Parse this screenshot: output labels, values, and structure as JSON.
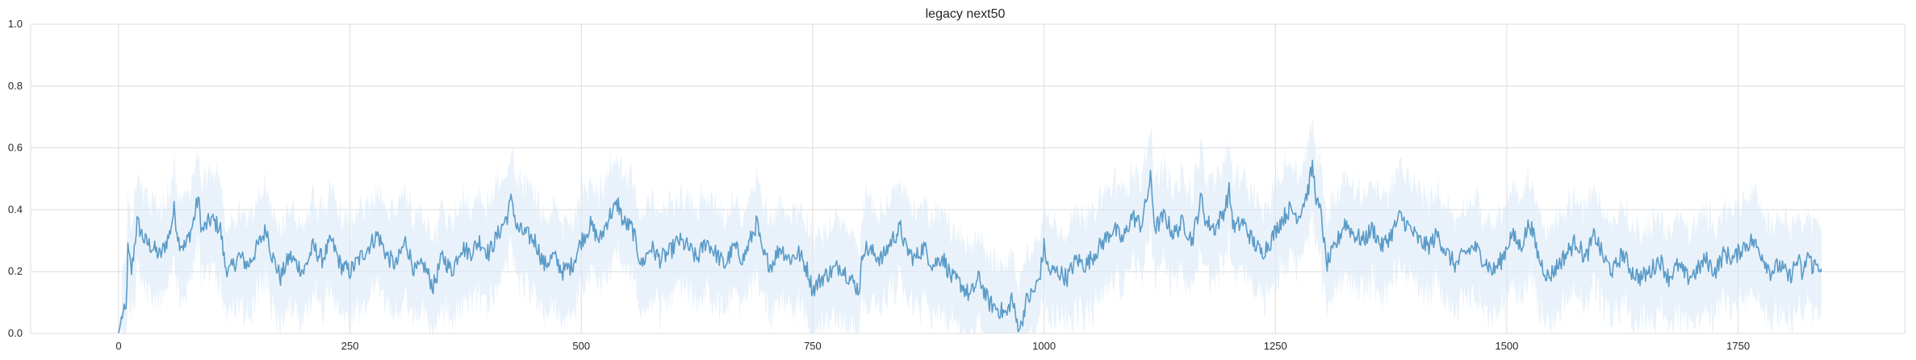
{
  "chart_data": {
    "type": "line",
    "title": "legacy next50",
    "xlabel": "",
    "ylabel": "",
    "xlim": [
      -95,
      1930
    ],
    "ylim": [
      0,
      1
    ],
    "x_ticks": [
      0,
      250,
      500,
      750,
      1000,
      1250,
      1500,
      1750
    ],
    "y_ticks": [
      0.0,
      0.2,
      0.4,
      0.6,
      0.8,
      1.0
    ],
    "y_tick_labels": [
      "0.0",
      "0.2",
      "0.4",
      "0.6",
      "0.8",
      "1.0"
    ],
    "grid": true,
    "legend": "none",
    "series": [
      {
        "color": "#5b9bc8",
        "band_color": "#dbe9f6",
        "x_step": 1,
        "x_start": 0,
        "x_end": 1840,
        "keypoints": [
          [
            0,
            0.0
          ],
          [
            4,
            0.06
          ],
          [
            8,
            0.07
          ],
          [
            10,
            0.27
          ],
          [
            14,
            0.2
          ],
          [
            20,
            0.36
          ],
          [
            28,
            0.3
          ],
          [
            36,
            0.28
          ],
          [
            45,
            0.25
          ],
          [
            55,
            0.32
          ],
          [
            60,
            0.4
          ],
          [
            65,
            0.3
          ],
          [
            72,
            0.28
          ],
          [
            80,
            0.35
          ],
          [
            86,
            0.44
          ],
          [
            90,
            0.33
          ],
          [
            100,
            0.37
          ],
          [
            110,
            0.34
          ],
          [
            115,
            0.22
          ],
          [
            120,
            0.2
          ],
          [
            130,
            0.25
          ],
          [
            140,
            0.22
          ],
          [
            150,
            0.28
          ],
          [
            160,
            0.34
          ],
          [
            165,
            0.26
          ],
          [
            175,
            0.18
          ],
          [
            185,
            0.25
          ],
          [
            200,
            0.2
          ],
          [
            210,
            0.28
          ],
          [
            220,
            0.24
          ],
          [
            230,
            0.3
          ],
          [
            240,
            0.22
          ],
          [
            250,
            0.2
          ],
          [
            260,
            0.24
          ],
          [
            270,
            0.28
          ],
          [
            280,
            0.32
          ],
          [
            290,
            0.25
          ],
          [
            300,
            0.22
          ],
          [
            310,
            0.3
          ],
          [
            320,
            0.2
          ],
          [
            330,
            0.22
          ],
          [
            340,
            0.15
          ],
          [
            350,
            0.25
          ],
          [
            360,
            0.2
          ],
          [
            370,
            0.28
          ],
          [
            380,
            0.26
          ],
          [
            390,
            0.3
          ],
          [
            400,
            0.26
          ],
          [
            410,
            0.32
          ],
          [
            420,
            0.38
          ],
          [
            425,
            0.44
          ],
          [
            430,
            0.34
          ],
          [
            440,
            0.32
          ],
          [
            450,
            0.3
          ],
          [
            460,
            0.22
          ],
          [
            470,
            0.25
          ],
          [
            480,
            0.2
          ],
          [
            490,
            0.22
          ],
          [
            500,
            0.3
          ],
          [
            510,
            0.35
          ],
          [
            520,
            0.3
          ],
          [
            530,
            0.38
          ],
          [
            540,
            0.42
          ],
          [
            545,
            0.36
          ],
          [
            555,
            0.34
          ],
          [
            565,
            0.22
          ],
          [
            575,
            0.28
          ],
          [
            585,
            0.24
          ],
          [
            595,
            0.26
          ],
          [
            605,
            0.3
          ],
          [
            615,
            0.28
          ],
          [
            625,
            0.24
          ],
          [
            635,
            0.3
          ],
          [
            645,
            0.26
          ],
          [
            655,
            0.22
          ],
          [
            665,
            0.28
          ],
          [
            675,
            0.24
          ],
          [
            685,
            0.32
          ],
          [
            690,
            0.36
          ],
          [
            695,
            0.26
          ],
          [
            705,
            0.22
          ],
          [
            715,
            0.28
          ],
          [
            725,
            0.24
          ],
          [
            735,
            0.26
          ],
          [
            745,
            0.2
          ],
          [
            750,
            0.14
          ],
          [
            760,
            0.18
          ],
          [
            770,
            0.2
          ],
          [
            780,
            0.22
          ],
          [
            790,
            0.18
          ],
          [
            800,
            0.14
          ],
          [
            805,
            0.28
          ],
          [
            815,
            0.26
          ],
          [
            825,
            0.24
          ],
          [
            835,
            0.3
          ],
          [
            845,
            0.34
          ],
          [
            850,
            0.28
          ],
          [
            860,
            0.24
          ],
          [
            870,
            0.28
          ],
          [
            880,
            0.22
          ],
          [
            890,
            0.25
          ],
          [
            900,
            0.18
          ],
          [
            910,
            0.16
          ],
          [
            920,
            0.12
          ],
          [
            930,
            0.18
          ],
          [
            940,
            0.1
          ],
          [
            950,
            0.08
          ],
          [
            960,
            0.06
          ],
          [
            965,
            0.12
          ],
          [
            970,
            0.04
          ],
          [
            975,
            0.02
          ],
          [
            980,
            0.1
          ],
          [
            990,
            0.14
          ],
          [
            995,
            0.18
          ],
          [
            1000,
            0.28
          ],
          [
            1005,
            0.2
          ],
          [
            1015,
            0.2
          ],
          [
            1025,
            0.18
          ],
          [
            1035,
            0.24
          ],
          [
            1045,
            0.22
          ],
          [
            1055,
            0.26
          ],
          [
            1065,
            0.3
          ],
          [
            1075,
            0.34
          ],
          [
            1085,
            0.3
          ],
          [
            1095,
            0.38
          ],
          [
            1105,
            0.35
          ],
          [
            1110,
            0.42
          ],
          [
            1115,
            0.5
          ],
          [
            1120,
            0.34
          ],
          [
            1130,
            0.38
          ],
          [
            1140,
            0.32
          ],
          [
            1150,
            0.36
          ],
          [
            1160,
            0.3
          ],
          [
            1170,
            0.44
          ],
          [
            1175,
            0.36
          ],
          [
            1185,
            0.34
          ],
          [
            1195,
            0.4
          ],
          [
            1200,
            0.46
          ],
          [
            1205,
            0.34
          ],
          [
            1215,
            0.36
          ],
          [
            1225,
            0.3
          ],
          [
            1235,
            0.26
          ],
          [
            1245,
            0.3
          ],
          [
            1255,
            0.36
          ],
          [
            1265,
            0.4
          ],
          [
            1275,
            0.38
          ],
          [
            1285,
            0.46
          ],
          [
            1290,
            0.54
          ],
          [
            1295,
            0.42
          ],
          [
            1300,
            0.38
          ],
          [
            1305,
            0.22
          ],
          [
            1315,
            0.28
          ],
          [
            1325,
            0.36
          ],
          [
            1335,
            0.32
          ],
          [
            1345,
            0.3
          ],
          [
            1355,
            0.34
          ],
          [
            1365,
            0.28
          ],
          [
            1375,
            0.32
          ],
          [
            1385,
            0.38
          ],
          [
            1395,
            0.34
          ],
          [
            1405,
            0.3
          ],
          [
            1415,
            0.28
          ],
          [
            1425,
            0.32
          ],
          [
            1435,
            0.26
          ],
          [
            1445,
            0.22
          ],
          [
            1455,
            0.26
          ],
          [
            1465,
            0.28
          ],
          [
            1475,
            0.24
          ],
          [
            1485,
            0.2
          ],
          [
            1495,
            0.24
          ],
          [
            1505,
            0.32
          ],
          [
            1515,
            0.28
          ],
          [
            1525,
            0.36
          ],
          [
            1535,
            0.24
          ],
          [
            1545,
            0.18
          ],
          [
            1555,
            0.22
          ],
          [
            1565,
            0.26
          ],
          [
            1575,
            0.3
          ],
          [
            1585,
            0.24
          ],
          [
            1595,
            0.32
          ],
          [
            1605,
            0.24
          ],
          [
            1615,
            0.2
          ],
          [
            1625,
            0.26
          ],
          [
            1635,
            0.2
          ],
          [
            1645,
            0.18
          ],
          [
            1655,
            0.2
          ],
          [
            1665,
            0.24
          ],
          [
            1675,
            0.18
          ],
          [
            1685,
            0.22
          ],
          [
            1695,
            0.18
          ],
          [
            1705,
            0.2
          ],
          [
            1715,
            0.24
          ],
          [
            1725,
            0.2
          ],
          [
            1735,
            0.26
          ],
          [
            1745,
            0.24
          ],
          [
            1755,
            0.28
          ],
          [
            1765,
            0.3
          ],
          [
            1775,
            0.26
          ],
          [
            1785,
            0.2
          ],
          [
            1795,
            0.22
          ],
          [
            1805,
            0.18
          ],
          [
            1815,
            0.24
          ],
          [
            1820,
            0.18
          ],
          [
            1825,
            0.26
          ],
          [
            1830,
            0.22
          ],
          [
            1840,
            0.22
          ]
        ]
      }
    ]
  }
}
